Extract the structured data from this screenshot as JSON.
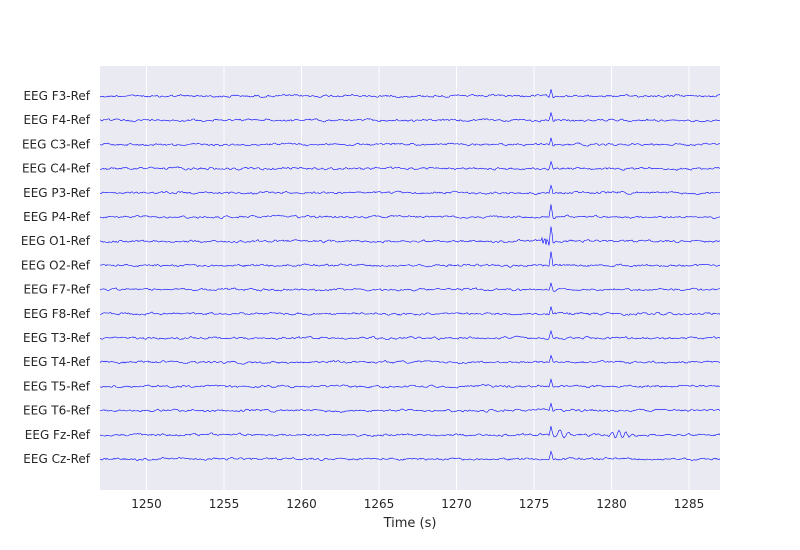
{
  "chart_data": {
    "type": "line",
    "title": "",
    "xlabel": "Time (s)",
    "ylabel": "",
    "xlim": [
      1247,
      1287
    ],
    "xticks": [
      1250,
      1255,
      1260,
      1265,
      1270,
      1275,
      1280,
      1285
    ],
    "grid": true,
    "colors": {
      "background": "#eaeaf2",
      "grid": "#ffffff",
      "trace": "#0000ff"
    },
    "event_time": 1276.1,
    "channels": [
      {
        "name": "EEG F3-Ref",
        "spike": 1.0
      },
      {
        "name": "EEG F4-Ref",
        "spike": 0.9
      },
      {
        "name": "EEG C3-Ref",
        "spike": 0.9
      },
      {
        "name": "EEG C4-Ref",
        "spike": 0.8
      },
      {
        "name": "EEG P3-Ref",
        "spike": 0.9
      },
      {
        "name": "EEG P4-Ref",
        "spike": 1.4
      },
      {
        "name": "EEG O1-Ref",
        "spike": 1.8
      },
      {
        "name": "EEG O2-Ref",
        "spike": 1.6
      },
      {
        "name": "EEG F7-Ref",
        "spike": 0.9
      },
      {
        "name": "EEG F8-Ref",
        "spike": 0.8
      },
      {
        "name": "EEG T3-Ref",
        "spike": 0.8
      },
      {
        "name": "EEG T4-Ref",
        "spike": 0.8
      },
      {
        "name": "EEG T5-Ref",
        "spike": 0.8
      },
      {
        "name": "EEG T6-Ref",
        "spike": 0.8
      },
      {
        "name": "EEG Fz-Ref",
        "spike": 0.9
      },
      {
        "name": "EEG Cz-Ref",
        "spike": 1.0
      }
    ]
  }
}
